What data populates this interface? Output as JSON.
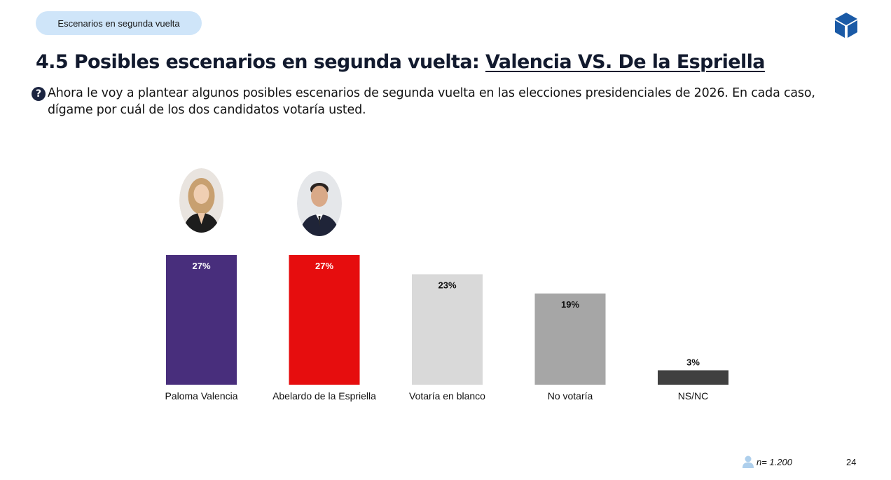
{
  "header": {
    "section_pill": "Escenarios en segunda vuelta",
    "title_prefix": "4.5 Posibles escenarios en segunda vuelta: ",
    "title_highlight": "Valencia VS. De la Espriella",
    "question": "Ahora le voy a plantear algunos posibles escenarios de segunda vuelta en las elecciones presidenciales de 2026. En cada caso, dígame por cuál de los dos candidatos votaría usted.",
    "logo_icon": "cube-icon",
    "question_icon": "question-mark-icon"
  },
  "chart_data": {
    "type": "bar",
    "categories": [
      "Paloma Valencia",
      "Abelardo de la Espriella",
      "Votaría en blanco",
      "No votaría",
      "NS/NC"
    ],
    "values": [
      27,
      27,
      23,
      19,
      3
    ],
    "value_labels": [
      "27%",
      "27%",
      "23%",
      "19%",
      "3%"
    ],
    "colors": [
      "#482e7c",
      "#e60d0e",
      "#d9d9d9",
      "#a6a6a6",
      "#404040"
    ],
    "label_colors": [
      "#ffffff",
      "#ffffff",
      "#111111",
      "#111111",
      "#111111"
    ],
    "ylim": [
      0,
      27
    ],
    "grid": false,
    "xlabel": "",
    "ylabel": ""
  },
  "footer": {
    "sample": "n= 1.200",
    "page_number": "24",
    "sample_icon": "person-icon"
  }
}
